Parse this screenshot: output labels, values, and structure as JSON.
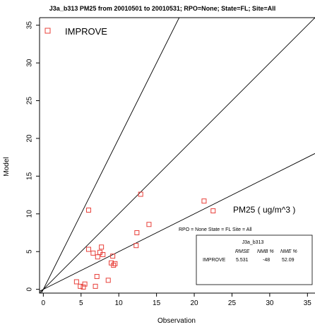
{
  "chart_data": {
    "type": "scatter",
    "title": "J3a_b313 PM25 from 20010501 to 20010531; RPO=None; State=FL; Site=All",
    "xlabel": "Observation",
    "ylabel": "Model",
    "xlim": [
      -0.5,
      36
    ],
    "ylim": [
      -0.5,
      36
    ],
    "x_ticks": [
      0,
      5,
      10,
      15,
      20,
      25,
      30,
      35
    ],
    "y_ticks": [
      0,
      5,
      10,
      15,
      20,
      25,
      30,
      35
    ],
    "grid": false,
    "reference_lines": [
      {
        "name": "2:1",
        "slope": 2.0
      },
      {
        "name": "1:1",
        "slope": 1.0
      },
      {
        "name": "1:2",
        "slope": 0.5
      }
    ],
    "series": [
      {
        "name": "IMPROVE",
        "marker": "open-square",
        "color": "#e8403a",
        "points": [
          [
            4.4,
            1.0
          ],
          [
            4.9,
            0.4
          ],
          [
            5.3,
            0.3
          ],
          [
            5.5,
            0.7
          ],
          [
            6.0,
            10.5
          ],
          [
            6.0,
            5.3
          ],
          [
            6.6,
            4.8
          ],
          [
            6.9,
            0.4
          ],
          [
            7.1,
            1.7
          ],
          [
            7.2,
            4.3
          ],
          [
            7.5,
            4.9
          ],
          [
            7.7,
            5.6
          ],
          [
            7.9,
            4.6
          ],
          [
            8.6,
            1.2
          ],
          [
            9.0,
            3.5
          ],
          [
            9.2,
            4.4
          ],
          [
            9.3,
            3.2
          ],
          [
            9.5,
            3.4
          ],
          [
            12.3,
            5.8
          ],
          [
            12.4,
            7.5
          ],
          [
            12.9,
            12.6
          ],
          [
            14.0,
            8.6
          ],
          [
            21.3,
            11.7
          ],
          [
            22.5,
            10.4
          ]
        ]
      }
    ],
    "legend": {
      "label": "IMPROVE",
      "placement": "top-left"
    },
    "annotation": "PM25 ( ug/m^3 )",
    "stats_box": {
      "header": "RPO = None   State = FL   Site = All",
      "run_name": "J3a_b313",
      "columns": [
        "RMSE",
        "NMB %",
        "NME %"
      ],
      "rows": [
        {
          "label": "IMPROVE",
          "values": [
            "5.531",
            "-48",
            "52.09"
          ]
        }
      ]
    }
  }
}
